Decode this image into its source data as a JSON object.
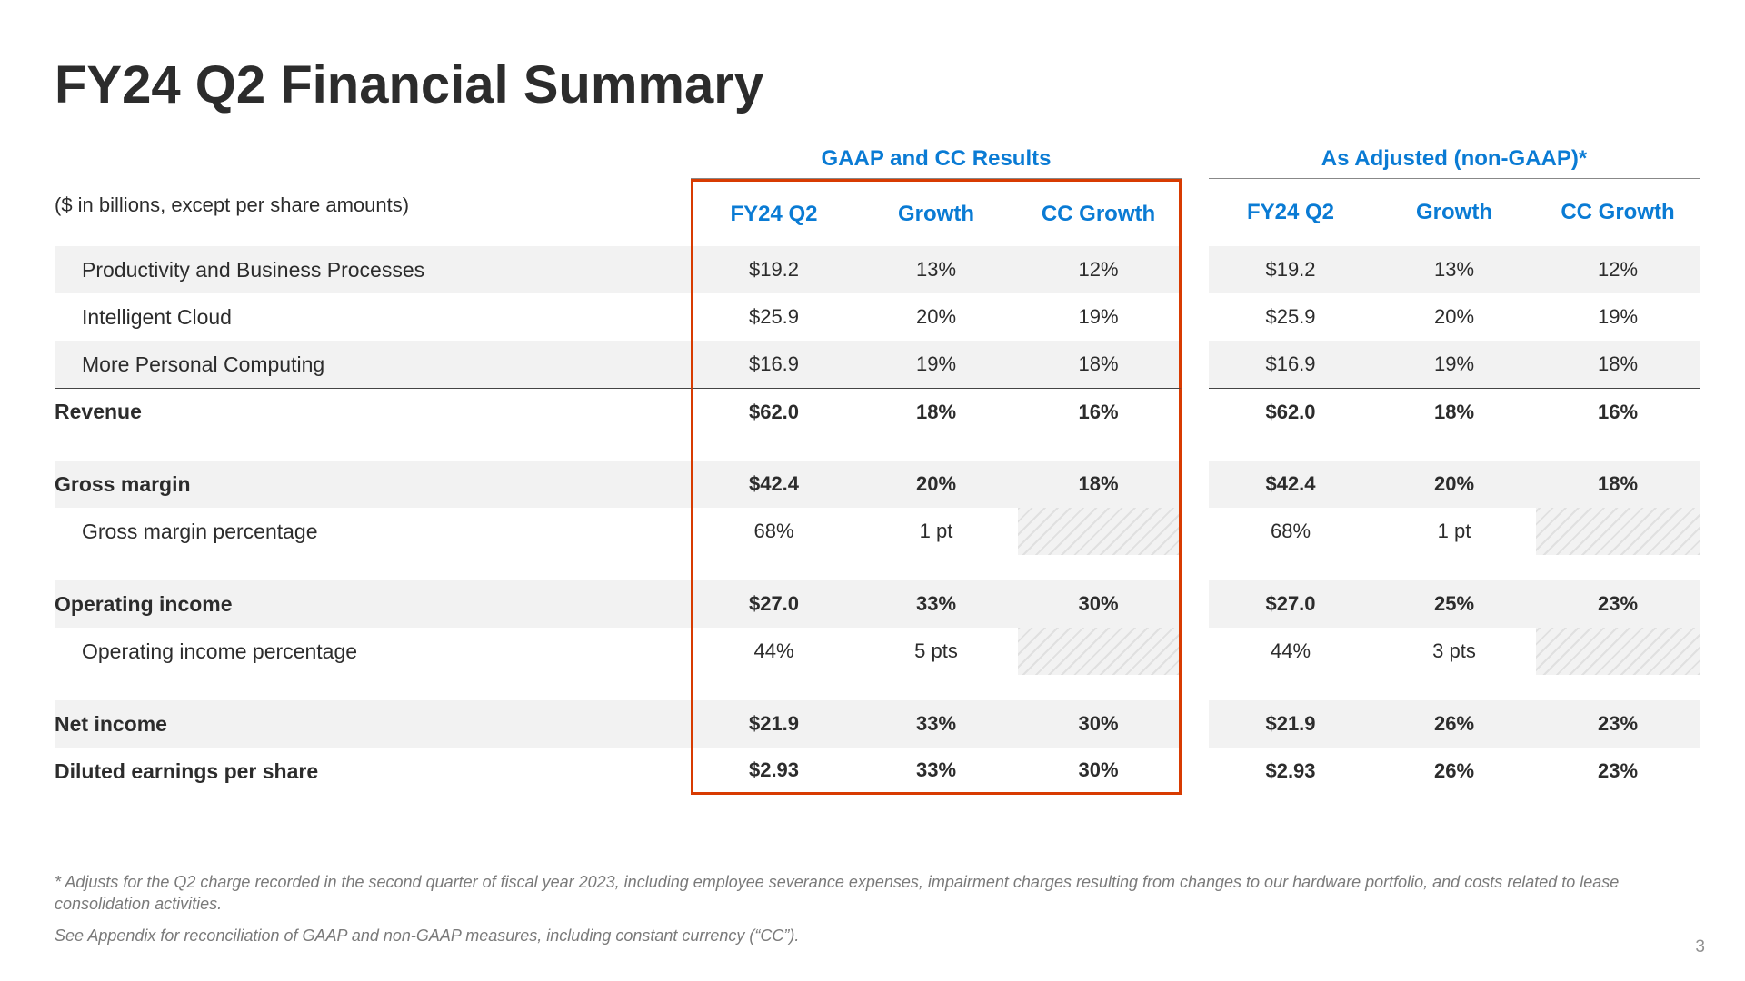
{
  "title": "FY24 Q2 Financial Summary",
  "subtitle": "($ in billions, except per share amounts)",
  "group_a": "GAAP and CC Results",
  "group_b": "As Adjusted (non-GAAP)*",
  "col1": "FY24 Q2",
  "col2": "Growth",
  "col3": "CC Growth",
  "rows": {
    "r1": {
      "label": "Productivity and Business Processes",
      "a1": "$19.2",
      "a2": "13%",
      "a3": "12%",
      "b1": "$19.2",
      "b2": "13%",
      "b3": "12%"
    },
    "r2": {
      "label": "Intelligent Cloud",
      "a1": "$25.9",
      "a2": "20%",
      "a3": "19%",
      "b1": "$25.9",
      "b2": "20%",
      "b3": "19%"
    },
    "r3": {
      "label": "More Personal Computing",
      "a1": "$16.9",
      "a2": "19%",
      "a3": "18%",
      "b1": "$16.9",
      "b2": "19%",
      "b3": "18%"
    },
    "r4": {
      "label": "Revenue",
      "a1": "$62.0",
      "a2": "18%",
      "a3": "16%",
      "b1": "$62.0",
      "b2": "18%",
      "b3": "16%"
    },
    "r5": {
      "label": "Gross margin",
      "a1": "$42.4",
      "a2": "20%",
      "a3": "18%",
      "b1": "$42.4",
      "b2": "20%",
      "b3": "18%"
    },
    "r6": {
      "label": "Gross margin percentage",
      "a1": "68%",
      "a2": "1 pt",
      "a3": "",
      "b1": "68%",
      "b2": "1 pt",
      "b3": ""
    },
    "r7": {
      "label": "Operating income",
      "a1": "$27.0",
      "a2": "33%",
      "a3": "30%",
      "b1": "$27.0",
      "b2": "25%",
      "b3": "23%"
    },
    "r8": {
      "label": "Operating income percentage",
      "a1": "44%",
      "a2": "5 pts",
      "a3": "",
      "b1": "44%",
      "b2": "3 pts",
      "b3": ""
    },
    "r9": {
      "label": "Net income",
      "a1": "$21.9",
      "a2": "33%",
      "a3": "30%",
      "b1": "$21.9",
      "b2": "26%",
      "b3": "23%"
    },
    "r10": {
      "label": "Diluted earnings per share",
      "a1": "$2.93",
      "a2": "33%",
      "a3": "30%",
      "b1": "$2.93",
      "b2": "26%",
      "b3": "23%"
    }
  },
  "footnote1": "* Adjusts for the Q2 charge recorded in the second quarter of fiscal year 2023, including employee severance expenses, impairment charges resulting from changes to our hardware portfolio, and costs related to lease consolidation activities.",
  "footnote2": "See Appendix for reconciliation of GAAP and non-GAAP measures, including constant currency (“CC”).",
  "page_number": "3"
}
